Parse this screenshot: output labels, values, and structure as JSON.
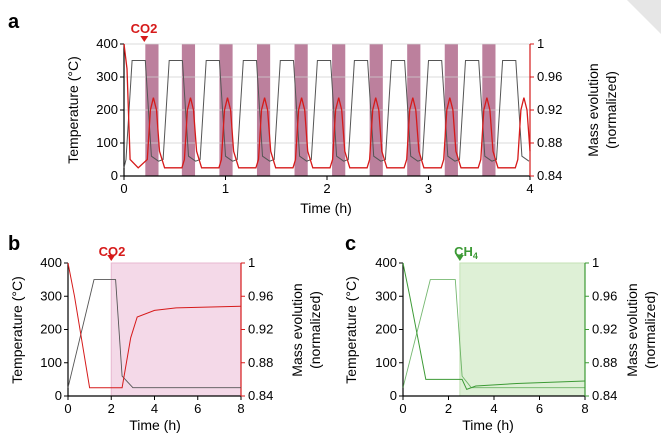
{
  "colors": {
    "temperature": "#555555",
    "mass_red": "#d61a1a",
    "mass_green": "#3c9a35",
    "co2_band": "#a04a74",
    "co2_shade": "#f4d9e8",
    "ch4_shade": "#def0d6"
  },
  "chart_data": [
    {
      "type": "line",
      "panel_label": "a",
      "marker_text": "CO2",
      "marker_x": 0.2,
      "xlabel": "Time (h)",
      "ylabel_left": "Temperature (°C)",
      "ylabel_right_line1": "Mass evolution",
      "ylabel_right_line2": "(normalized)",
      "xlim": [
        0,
        4
      ],
      "ylim_left": [
        0,
        400
      ],
      "ylim_right": [
        0.84,
        1.0
      ],
      "x_ticks": [
        "0",
        "1",
        "2",
        "3",
        "4"
      ],
      "y_left_ticks": [
        "0",
        "100",
        "200",
        "300",
        "400"
      ],
      "y_right_ticks": [
        "0.84",
        "0.88",
        "0.92",
        "0.96",
        "1"
      ],
      "grid": "horizontal",
      "co2_bands_h": [
        [
          0.21,
          0.34
        ],
        [
          0.57,
          0.7
        ],
        [
          0.94,
          1.07
        ],
        [
          1.31,
          1.44
        ],
        [
          1.68,
          1.81
        ],
        [
          2.05,
          2.18
        ],
        [
          2.42,
          2.55
        ],
        [
          2.79,
          2.92
        ],
        [
          3.16,
          3.29
        ],
        [
          3.53,
          3.66
        ]
      ],
      "cycle_period_h": 0.365,
      "temperature_plateau_c": 350,
      "mass_baseline": 0.85,
      "mass_peak": 0.935
    },
    {
      "type": "line",
      "panel_label": "b",
      "marker_text": "CO2",
      "marker_x": 2.0,
      "xlabel": "Time (h)",
      "ylabel_left": "Temperature (°C)",
      "ylabel_right_line1": "Mass evolution",
      "ylabel_right_line2": "(normalized)",
      "xlim": [
        0,
        8
      ],
      "ylim_left": [
        0,
        400
      ],
      "ylim_right": [
        0.84,
        1.0
      ],
      "x_ticks": [
        "0",
        "2",
        "4",
        "6",
        "8"
      ],
      "y_left_ticks": [
        "0",
        "100",
        "200",
        "300",
        "400"
      ],
      "y_right_ticks": [
        "0.84",
        "0.88",
        "0.92",
        "0.96",
        "1"
      ],
      "shade_from": 2.0,
      "temperature": {
        "x": [
          0,
          1.2,
          2.2,
          2.5,
          3.0,
          8
        ],
        "y": [
          25,
          350,
          350,
          60,
          25,
          25
        ]
      },
      "mass": {
        "x": [
          0,
          0.3,
          1.0,
          2.5,
          2.9,
          3.2,
          4.0,
          5.0,
          8
        ],
        "y": [
          1.0,
          0.96,
          0.85,
          0.85,
          0.91,
          0.935,
          0.943,
          0.946,
          0.948
        ]
      }
    },
    {
      "type": "line",
      "panel_label": "c",
      "marker_text": "CH",
      "marker_sub": "4",
      "marker_x": 2.5,
      "xlabel": "Time (h)",
      "ylabel_left": "Temperature (°C)",
      "ylabel_right_line1": "Mass evolution",
      "ylabel_right_line2": "(normalized)",
      "xlim": [
        0,
        8
      ],
      "ylim_left": [
        0,
        400
      ],
      "ylim_right": [
        0.84,
        1.0
      ],
      "x_ticks": [
        "0",
        "2",
        "4",
        "6",
        "8"
      ],
      "y_left_ticks": [
        "0",
        "100",
        "200",
        "300",
        "400"
      ],
      "y_right_ticks": [
        "0.84",
        "0.88",
        "0.92",
        "0.96",
        "1"
      ],
      "shade_from": 2.5,
      "temperature": {
        "x": [
          0,
          1.2,
          2.3,
          2.6,
          3.0,
          8
        ],
        "y": [
          25,
          350,
          350,
          60,
          25,
          25
        ]
      },
      "mass": {
        "x": [
          0,
          0.3,
          1.0,
          2.6,
          2.8,
          3.2,
          5.0,
          8
        ],
        "y": [
          1.0,
          0.96,
          0.86,
          0.86,
          0.848,
          0.852,
          0.855,
          0.858
        ]
      }
    }
  ]
}
